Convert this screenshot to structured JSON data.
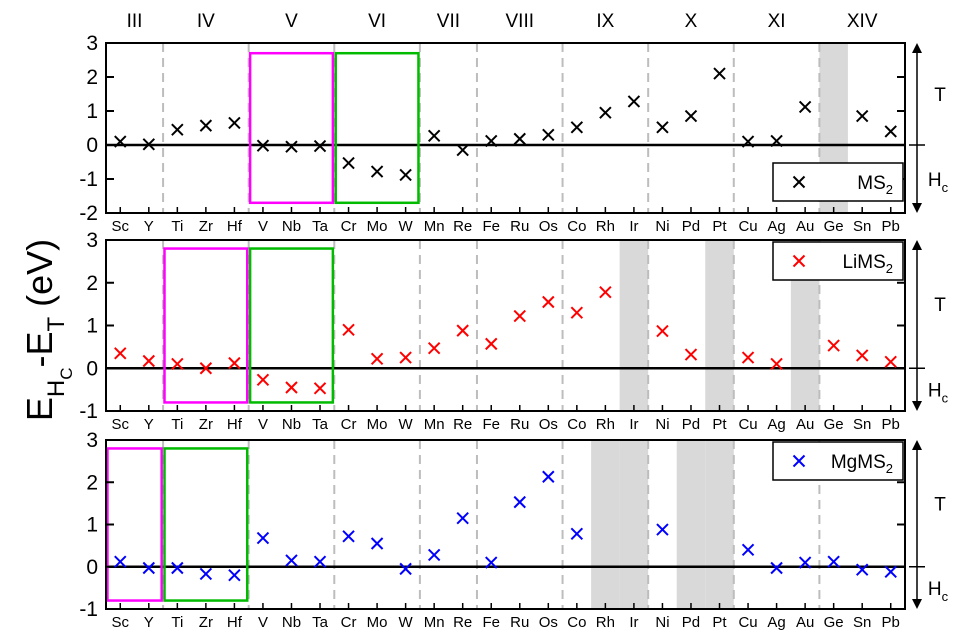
{
  "figure": {
    "ylabel": {
      "main": "E",
      "sub1": "H",
      "subsub": "C",
      "mid": "-E",
      "sub2": "T",
      "unit": " (eV)"
    },
    "groups": [
      "III",
      "IV",
      "V",
      "VI",
      "VII",
      "VIII",
      "IX",
      "X",
      "XI",
      "XIV"
    ],
    "side_labels": {
      "top": "T",
      "bottom_main": "H",
      "bottom_sub": "c"
    }
  },
  "chart_data": [
    {
      "type": "scatter",
      "marker": "x",
      "color": "#000000",
      "series": [
        {
          "name_main": "MS",
          "name_sub": "2"
        }
      ],
      "categories": [
        "Sc",
        "Y",
        "Ti",
        "Zr",
        "Hf",
        "V",
        "Nb",
        "Ta",
        "Cr",
        "Mo",
        "W",
        "Mn",
        "Re",
        "Fe",
        "Ru",
        "Os",
        "Co",
        "Rh",
        "Ir",
        "Ni",
        "Pd",
        "Pt",
        "Cu",
        "Ag",
        "Au",
        "Ge",
        "Sn",
        "Pb"
      ],
      "values": [
        0.1,
        0.02,
        0.45,
        0.57,
        0.65,
        -0.02,
        -0.05,
        -0.03,
        -0.53,
        -0.78,
        -0.88,
        0.27,
        -0.15,
        0.12,
        0.18,
        0.3,
        0.52,
        0.95,
        1.28,
        0.52,
        0.85,
        2.1,
        0.1,
        0.12,
        1.12,
        null,
        0.85,
        0.4
      ],
      "ylim": [
        -2,
        3
      ],
      "yticks": [
        -2,
        -1,
        0,
        1,
        2,
        3
      ],
      "gray_bands": [
        "Ge"
      ],
      "boxes": [
        {
          "color": "#ff00ff",
          "from": "V",
          "to": "Ta",
          "ylim": [
            -1.7,
            2.7
          ]
        },
        {
          "color": "#00bb00",
          "from": "Cr",
          "to": "W",
          "ylim": [
            -1.7,
            2.7
          ]
        }
      ],
      "legend": "bottom-right",
      "group_dividers_after": [
        "Y",
        "Hf",
        "Ta",
        "W",
        "Re",
        "Os",
        "Ir",
        "Pt",
        "Au"
      ]
    },
    {
      "type": "scatter",
      "marker": "x",
      "color": "#ff0000",
      "series": [
        {
          "name_main": "LiMS",
          "name_sub": "2"
        }
      ],
      "categories": [
        "Sc",
        "Y",
        "Ti",
        "Zr",
        "Hf",
        "V",
        "Nb",
        "Ta",
        "Cr",
        "Mo",
        "W",
        "Mn",
        "Re",
        "Fe",
        "Ru",
        "Os",
        "Co",
        "Rh",
        "Ir",
        "Ni",
        "Pd",
        "Pt",
        "Cu",
        "Ag",
        "Au",
        "Ge",
        "Sn",
        "Pb"
      ],
      "values": [
        0.35,
        0.17,
        0.1,
        0.0,
        0.12,
        -0.27,
        -0.45,
        -0.47,
        0.9,
        0.22,
        0.25,
        0.47,
        0.88,
        0.57,
        1.22,
        1.55,
        1.3,
        1.78,
        null,
        0.87,
        0.32,
        null,
        0.25,
        0.1,
        null,
        0.53,
        0.3,
        0.15
      ],
      "ylim": [
        -1,
        3
      ],
      "yticks": [
        -1,
        0,
        1,
        2,
        3
      ],
      "gray_bands": [
        "Ir",
        "Pt",
        "Au"
      ],
      "boxes": [
        {
          "color": "#ff00ff",
          "from": "Ti",
          "to": "Hf",
          "ylim": [
            -0.8,
            2.8
          ]
        },
        {
          "color": "#00bb00",
          "from": "V",
          "to": "Ta",
          "ylim": [
            -0.8,
            2.8
          ]
        }
      ],
      "legend": "top-right",
      "group_dividers_after": [
        "Y",
        "Hf",
        "Ta",
        "W",
        "Re",
        "Os",
        "Ir",
        "Pt",
        "Au"
      ]
    },
    {
      "type": "scatter",
      "marker": "x",
      "color": "#0000ff",
      "series": [
        {
          "name_main": "MgMS",
          "name_sub": "2"
        }
      ],
      "categories": [
        "Sc",
        "Y",
        "Ti",
        "Zr",
        "Hf",
        "V",
        "Nb",
        "Ta",
        "Cr",
        "Mo",
        "W",
        "Mn",
        "Re",
        "Fe",
        "Ru",
        "Os",
        "Co",
        "Rh",
        "Ir",
        "Ni",
        "Pd",
        "Pt",
        "Cu",
        "Ag",
        "Au",
        "Ge",
        "Sn",
        "Pb"
      ],
      "values": [
        0.12,
        -0.03,
        -0.03,
        -0.17,
        -0.2,
        0.68,
        0.15,
        0.12,
        0.72,
        0.55,
        -0.05,
        0.28,
        1.15,
        0.1,
        1.53,
        2.13,
        0.78,
        null,
        null,
        0.88,
        null,
        null,
        0.4,
        -0.03,
        0.1,
        0.12,
        -0.07,
        -0.12
      ],
      "ylim": [
        -1,
        3
      ],
      "yticks": [
        -1,
        0,
        1,
        2,
        3
      ],
      "gray_bands": [
        "Rh",
        "Ir",
        "Pd",
        "Pt"
      ],
      "boxes": [
        {
          "color": "#ff00ff",
          "from": "Sc",
          "to": "Y",
          "ylim": [
            -0.8,
            2.8
          ]
        },
        {
          "color": "#00bb00",
          "from": "Ti",
          "to": "Hf",
          "ylim": [
            -0.8,
            2.8
          ]
        }
      ],
      "legend": "top-right",
      "group_dividers_after": [
        "Y",
        "Hf",
        "Ta",
        "W",
        "Re",
        "Os",
        "Ir",
        "Pt",
        "Au"
      ]
    }
  ]
}
